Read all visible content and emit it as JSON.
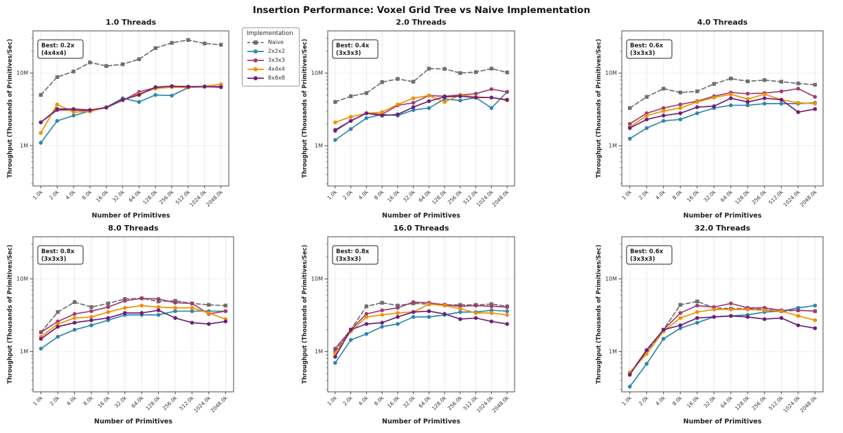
{
  "figure_title": "Insertion Performance: Voxel Grid Tree vs Naive Implementation",
  "legend": {
    "title": "Implementation",
    "entries": [
      {
        "label": "Naive",
        "color": "#6e6e6e",
        "line": "dashed",
        "marker": "square"
      },
      {
        "label": "2x2x2",
        "color": "#2e86ab",
        "line": "solid",
        "marker": "circle"
      },
      {
        "label": "3x3x3",
        "color": "#a23b72",
        "line": "solid",
        "marker": "circle"
      },
      {
        "label": "4x4x4",
        "color": "#f18f01",
        "line": "solid",
        "marker": "circle"
      },
      {
        "label": "8x8x8",
        "color": "#6d2077",
        "line": "solid",
        "marker": "circle"
      }
    ]
  },
  "axes": {
    "xlabel": "Number of Primitives",
    "ylabel": "Throughput (Thousands of Primitives/Sec)",
    "x_tick_labels": [
      "1.0k",
      "2.0k",
      "4.0k",
      "8.0k",
      "16.0k",
      "32.0k",
      "64.0k",
      "128.0k",
      "256.0k",
      "512.0k",
      "1024.0k",
      "2048.0k"
    ],
    "y_ticks": [
      {
        "value": 1,
        "label": "1M"
      },
      {
        "value": 10,
        "label": "10M"
      }
    ],
    "yscale": "log",
    "y_unit": "millions (per axis tick labels 1M / 10M)",
    "ylim": [
      0.28,
      38
    ],
    "grid": "vertical major gridlines on, light horizontal at decades"
  },
  "chart_data": [
    {
      "type": "line",
      "title": "1.0 Threads",
      "annotation": [
        "Best: 0.2x",
        "(4x4x4)"
      ],
      "x_categories": [
        "1.0k",
        "2.0k",
        "4.0k",
        "8.0k",
        "16.0k",
        "32.0k",
        "64.0k",
        "128.0k",
        "256.0k",
        "512.0k",
        "1024.0k",
        "2048.0k"
      ],
      "series": [
        {
          "name": "Naive",
          "values": [
            5.0,
            8.8,
            10.5,
            14.0,
            12.5,
            13.2,
            15.5,
            22.0,
            26.0,
            28.5,
            25.5,
            24.5
          ]
        },
        {
          "name": "2x2x2",
          "values": [
            1.1,
            2.2,
            2.6,
            3.0,
            3.4,
            4.5,
            4.0,
            5.0,
            4.9,
            6.3,
            6.5,
            6.5
          ]
        },
        {
          "name": "3x3x3",
          "values": [
            2.1,
            3.1,
            3.1,
            3.0,
            3.35,
            4.2,
            5.5,
            6.3,
            6.6,
            6.5,
            6.5,
            6.5
          ]
        },
        {
          "name": "4x4x4",
          "values": [
            1.5,
            3.7,
            2.9,
            2.95,
            3.4,
            4.2,
            5.2,
            6.1,
            6.4,
            6.3,
            6.6,
            7.0
          ]
        },
        {
          "name": "8x8x8",
          "values": [
            2.1,
            3.2,
            3.2,
            3.1,
            3.35,
            4.3,
            5.0,
            6.4,
            6.6,
            6.5,
            6.5,
            6.4
          ]
        }
      ]
    },
    {
      "type": "line",
      "title": "2.0 Threads",
      "annotation": [
        "Best: 0.4x",
        "(3x3x3)"
      ],
      "x_categories": [
        "1.0k",
        "2.0k",
        "4.0k",
        "8.0k",
        "16.0k",
        "32.0k",
        "64.0k",
        "128.0k",
        "256.0k",
        "512.0k",
        "1024.0k",
        "2048.0k"
      ],
      "series": [
        {
          "name": "Naive",
          "values": [
            4.0,
            4.8,
            5.3,
            7.5,
            8.3,
            7.6,
            11.5,
            11.4,
            10.0,
            10.3,
            11.5,
            10.2
          ]
        },
        {
          "name": "2x2x2",
          "values": [
            1.2,
            1.7,
            2.4,
            2.7,
            2.6,
            3.1,
            3.3,
            4.4,
            4.2,
            4.6,
            3.3,
            5.5
          ]
        },
        {
          "name": "3x3x3",
          "values": [
            1.6,
            2.2,
            2.8,
            2.7,
            3.6,
            3.9,
            4.9,
            4.8,
            5.0,
            5.2,
            6.0,
            5.5
          ]
        },
        {
          "name": "4x4x4",
          "values": [
            2.1,
            2.5,
            2.8,
            2.9,
            3.7,
            4.5,
            4.9,
            4.0,
            5.0,
            4.7,
            4.6,
            4.2
          ]
        },
        {
          "name": "8x8x8",
          "values": [
            1.65,
            2.2,
            2.8,
            2.6,
            2.7,
            3.4,
            4.1,
            4.7,
            4.8,
            4.6,
            4.6,
            4.3
          ]
        }
      ]
    },
    {
      "type": "line",
      "title": "4.0 Threads",
      "annotation": [
        "Best: 0.6x",
        "(3x3x3)"
      ],
      "x_categories": [
        "1.0k",
        "2.0k",
        "4.0k",
        "8.0k",
        "16.0k",
        "32.0k",
        "64.0k",
        "128.0k",
        "256.0k",
        "512.0k",
        "1024.0k",
        "2048.0k"
      ],
      "series": [
        {
          "name": "Naive",
          "values": [
            3.3,
            4.7,
            6.1,
            5.4,
            5.6,
            7.1,
            8.4,
            7.7,
            8.0,
            7.6,
            7.2,
            6.9
          ]
        },
        {
          "name": "2x2x2",
          "values": [
            1.25,
            1.75,
            2.2,
            2.3,
            2.8,
            3.3,
            3.6,
            3.6,
            3.8,
            3.8,
            3.8,
            3.9
          ]
        },
        {
          "name": "3x3x3",
          "values": [
            2.0,
            2.8,
            3.3,
            3.7,
            4.1,
            4.8,
            5.4,
            5.2,
            5.3,
            5.6,
            6.1,
            4.7
          ]
        },
        {
          "name": "4x4x4",
          "values": [
            1.8,
            2.6,
            3.0,
            3.3,
            4.0,
            4.6,
            5.1,
            4.4,
            5.1,
            4.3,
            3.9,
            3.8
          ]
        },
        {
          "name": "8x8x8",
          "values": [
            1.75,
            2.3,
            2.6,
            2.8,
            3.4,
            3.5,
            4.5,
            4.0,
            4.5,
            4.3,
            2.9,
            3.2
          ]
        }
      ]
    },
    {
      "type": "line",
      "title": "8.0 Threads",
      "annotation": [
        "Best: 0.8x",
        "(3x3x3)"
      ],
      "x_categories": [
        "1.0k",
        "2.0k",
        "4.0k",
        "8.0k",
        "16.0k",
        "32.0k",
        "64.0k",
        "128.0k",
        "256.0k",
        "512.0k",
        "1024.0k",
        "2048.0k"
      ],
      "series": [
        {
          "name": "Naive",
          "values": [
            1.85,
            3.5,
            4.8,
            4.1,
            4.6,
            5.3,
            5.4,
            4.9,
            5.0,
            4.6,
            4.4,
            4.3
          ]
        },
        {
          "name": "2x2x2",
          "values": [
            1.1,
            1.6,
            2.0,
            2.3,
            2.7,
            3.2,
            3.2,
            3.2,
            3.6,
            3.6,
            3.6,
            3.6
          ]
        },
        {
          "name": "3x3x3",
          "values": [
            1.85,
            2.6,
            3.3,
            3.6,
            4.1,
            5.0,
            5.4,
            5.3,
            4.7,
            4.6,
            3.3,
            3.6
          ]
        },
        {
          "name": "4x4x4",
          "values": [
            1.6,
            2.4,
            2.9,
            3.0,
            3.5,
            4.0,
            4.3,
            4.1,
            4.0,
            4.0,
            3.4,
            2.8
          ]
        },
        {
          "name": "8x8x8",
          "values": [
            1.5,
            2.2,
            2.5,
            2.7,
            2.9,
            3.4,
            3.4,
            3.7,
            2.9,
            2.5,
            2.4,
            2.6
          ]
        }
      ]
    },
    {
      "type": "line",
      "title": "16.0 Threads",
      "annotation": [
        "Best: 0.8x",
        "(3x3x3)"
      ],
      "x_categories": [
        "1.0k",
        "2.0k",
        "4.0k",
        "8.0k",
        "16.0k",
        "32.0k",
        "64.0k",
        "128.0k",
        "256.0k",
        "512.0k",
        "1024.0k",
        "2048.0k"
      ],
      "series": [
        {
          "name": "Naive",
          "values": [
            1.0,
            2.0,
            4.2,
            4.7,
            4.3,
            4.6,
            4.5,
            4.4,
            4.4,
            4.4,
            4.5,
            4.2
          ]
        },
        {
          "name": "2x2x2",
          "values": [
            0.7,
            1.45,
            1.75,
            2.2,
            2.4,
            3.0,
            3.0,
            3.2,
            3.5,
            3.5,
            3.7,
            3.6
          ]
        },
        {
          "name": "3x3x3",
          "values": [
            1.1,
            2.0,
            3.3,
            3.7,
            4.0,
            4.8,
            4.7,
            4.4,
            4.2,
            4.3,
            4.2,
            4.1
          ]
        },
        {
          "name": "4x4x4",
          "values": [
            0.95,
            1.9,
            3.0,
            3.2,
            3.4,
            3.5,
            4.5,
            4.3,
            3.9,
            3.4,
            3.4,
            3.2
          ]
        },
        {
          "name": "8x8x8",
          "values": [
            0.85,
            2.0,
            2.4,
            2.5,
            3.0,
            3.5,
            3.6,
            3.3,
            2.8,
            2.9,
            2.6,
            2.4
          ]
        }
      ]
    },
    {
      "type": "line",
      "title": "32.0 Threads",
      "annotation": [
        "Best: 0.6x",
        "(3x3x3)"
      ],
      "x_categories": [
        "1.0k",
        "2.0k",
        "4.0k",
        "8.0k",
        "16.0k",
        "32.0k",
        "64.0k",
        "128.0k",
        "256.0k",
        "512.0k",
        "1024.0k",
        "2048.0k"
      ],
      "series": [
        {
          "name": "Naive",
          "values": [
            0.5,
            1.0,
            2.0,
            4.4,
            4.9,
            4.0,
            3.9,
            3.9,
            3.8,
            3.6,
            3.7,
            3.6
          ]
        },
        {
          "name": "2x2x2",
          "values": [
            0.33,
            0.68,
            1.5,
            2.1,
            2.5,
            3.0,
            3.1,
            3.2,
            3.5,
            3.6,
            4.0,
            4.3
          ]
        },
        {
          "name": "3x3x3",
          "values": [
            0.5,
            1.05,
            2.0,
            3.4,
            4.3,
            4.1,
            4.6,
            4.0,
            4.0,
            3.7,
            3.7,
            3.6
          ]
        },
        {
          "name": "4x4x4",
          "values": [
            0.52,
            0.93,
            1.9,
            2.9,
            3.5,
            3.8,
            3.8,
            3.8,
            3.7,
            3.6,
            3.1,
            2.7
          ]
        },
        {
          "name": "8x8x8",
          "values": [
            0.48,
            1.05,
            2.0,
            2.3,
            2.9,
            3.0,
            3.1,
            3.0,
            2.8,
            2.9,
            2.3,
            2.1
          ]
        }
      ]
    }
  ]
}
